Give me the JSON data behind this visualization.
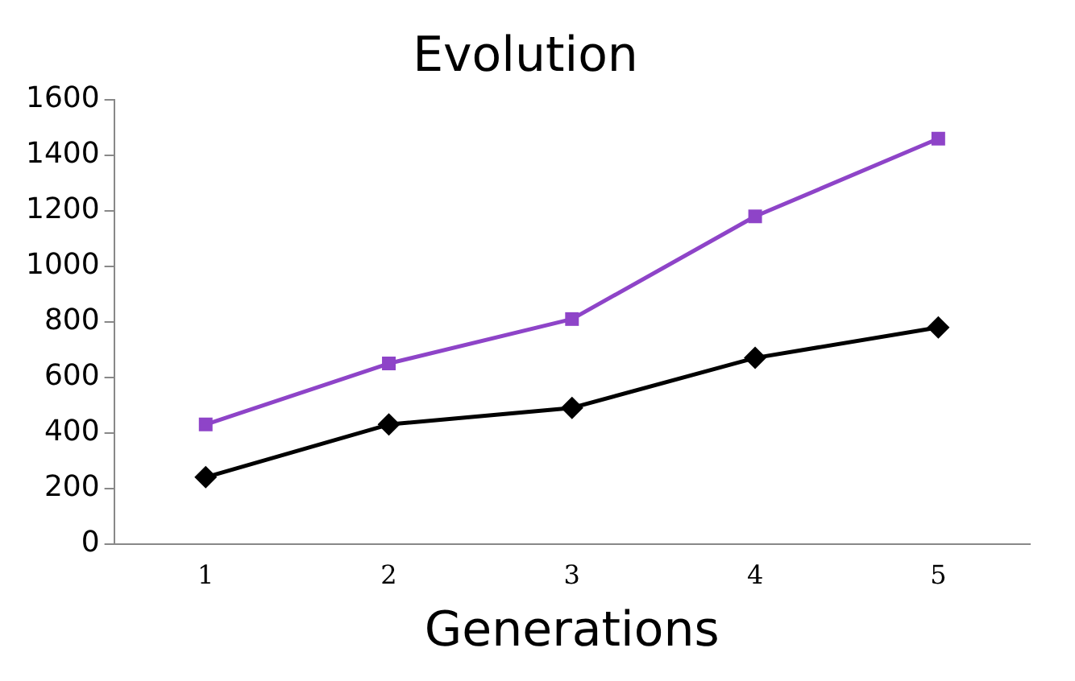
{
  "chart_data": {
    "type": "line",
    "title": "Evolution",
    "xlabel": "Generations",
    "categories": [
      "1",
      "2",
      "3",
      "4",
      "5"
    ],
    "series": [
      {
        "color": "#8e44c8",
        "marker": "square",
        "values": [
          430,
          650,
          810,
          1180,
          1460
        ]
      },
      {
        "color": "#000000",
        "marker": "diamond",
        "values": [
          240,
          430,
          490,
          670,
          780
        ]
      }
    ],
    "ylim": [
      0,
      1600
    ],
    "yticks": [
      0,
      200,
      400,
      600,
      800,
      1000,
      1200,
      1400,
      1600
    ],
    "grid": false,
    "legend": false
  }
}
